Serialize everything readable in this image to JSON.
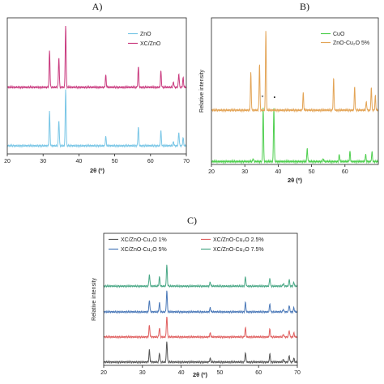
{
  "chart_data": [
    {
      "type": "line",
      "panel_label": "A)",
      "xlabel": "2θ (º)",
      "ylabel": "",
      "xlim": [
        20,
        70
      ],
      "xticks": [
        "20",
        "30",
        "40",
        "50",
        "60",
        "70"
      ],
      "legend_position": "top-right",
      "series": [
        {
          "name": "ZnO",
          "color": "#79c6e6",
          "baseline": 0.06,
          "peaks": [
            [
              31.8,
              0.25
            ],
            [
              34.4,
              0.19
            ],
            [
              36.3,
              0.42
            ],
            [
              47.5,
              0.07
            ],
            [
              56.6,
              0.14
            ],
            [
              62.9,
              0.11
            ],
            [
              66.4,
              0.03
            ],
            [
              67.9,
              0.1
            ],
            [
              69.1,
              0.06
            ]
          ]
        },
        {
          "name": "XC/ZnO",
          "color": "#c9397e",
          "baseline": 0.49,
          "peaks": [
            [
              31.8,
              0.27
            ],
            [
              34.4,
              0.22
            ],
            [
              36.3,
              0.46
            ],
            [
              47.5,
              0.09
            ],
            [
              56.6,
              0.15
            ],
            [
              62.9,
              0.12
            ],
            [
              66.4,
              0.04
            ],
            [
              67.9,
              0.1
            ],
            [
              69.1,
              0.07
            ]
          ]
        }
      ]
    },
    {
      "type": "line",
      "panel_label": "B)",
      "xlabel": "2θ (º)",
      "ylabel": "Relative intensity",
      "xlim": [
        20,
        70
      ],
      "xticks": [
        "20",
        "30",
        "40",
        "50",
        "60"
      ],
      "legend_position": "top-right",
      "annotations": [
        "*",
        "•"
      ],
      "series": [
        {
          "name": "CuO",
          "color": "#4fcf4f",
          "baseline": 0.02,
          "peaks": [
            [
              32.5,
              0.02
            ],
            [
              35.5,
              0.37
            ],
            [
              38.7,
              0.37
            ],
            [
              48.7,
              0.09
            ],
            [
              53.5,
              0.02
            ],
            [
              58.3,
              0.05
            ],
            [
              61.5,
              0.07
            ],
            [
              66.2,
              0.05
            ],
            [
              68.1,
              0.07
            ]
          ]
        },
        {
          "name": "ZnO-Cu₂O 5%",
          "color": "#e3a456",
          "baseline": 0.37,
          "peaks": [
            [
              31.8,
              0.26
            ],
            [
              34.4,
              0.32
            ],
            [
              36.3,
              0.55
            ],
            [
              47.5,
              0.12
            ],
            [
              56.6,
              0.22
            ],
            [
              62.9,
              0.16
            ],
            [
              66.4,
              0.06
            ],
            [
              67.9,
              0.16
            ],
            [
              69.1,
              0.1
            ]
          ]
        }
      ]
    },
    {
      "type": "line",
      "panel_label": "C)",
      "xlabel": "2θ (º)",
      "ylabel": "Relative intensity",
      "xlim": [
        20,
        70
      ],
      "xticks": [
        "20",
        "30",
        "40",
        "50",
        "60",
        "70"
      ],
      "legend_position": "top",
      "series": [
        {
          "name": "XC/ZnO-Cu₂O 1%",
          "color": "#555555",
          "baseline": 0.025,
          "peaks": [
            [
              31.8,
              0.09
            ],
            [
              34.4,
              0.07
            ],
            [
              36.3,
              0.16
            ],
            [
              47.5,
              0.03
            ],
            [
              56.6,
              0.07
            ],
            [
              62.9,
              0.06
            ],
            [
              66.4,
              0.02
            ],
            [
              67.9,
              0.05
            ],
            [
              69.1,
              0.03
            ]
          ]
        },
        {
          "name": "XC/ZnO-Cu₂O 2.5%",
          "color": "#e06060",
          "baseline": 0.215,
          "peaks": [
            [
              31.8,
              0.09
            ],
            [
              34.4,
              0.07
            ],
            [
              36.3,
              0.16
            ],
            [
              47.5,
              0.03
            ],
            [
              56.6,
              0.07
            ],
            [
              62.9,
              0.06
            ],
            [
              66.4,
              0.02
            ],
            [
              67.9,
              0.05
            ],
            [
              69.1,
              0.03
            ]
          ]
        },
        {
          "name": "XC/ZnO-Cu₂O 5%",
          "color": "#4a78b8",
          "baseline": 0.405,
          "peaks": [
            [
              31.8,
              0.09
            ],
            [
              34.4,
              0.07
            ],
            [
              36.3,
              0.16
            ],
            [
              47.5,
              0.03
            ],
            [
              56.6,
              0.07
            ],
            [
              62.9,
              0.06
            ],
            [
              66.4,
              0.02
            ],
            [
              67.9,
              0.05
            ],
            [
              69.1,
              0.03
            ]
          ]
        },
        {
          "name": "XC/ZnO-Cu₂O 7.5%",
          "color": "#4aa886",
          "baseline": 0.6,
          "peaks": [
            [
              31.8,
              0.09
            ],
            [
              34.4,
              0.07
            ],
            [
              36.3,
              0.16
            ],
            [
              47.5,
              0.03
            ],
            [
              56.6,
              0.07
            ],
            [
              62.9,
              0.06
            ],
            [
              66.4,
              0.02
            ],
            [
              67.9,
              0.05
            ],
            [
              69.1,
              0.03
            ]
          ]
        }
      ]
    }
  ]
}
